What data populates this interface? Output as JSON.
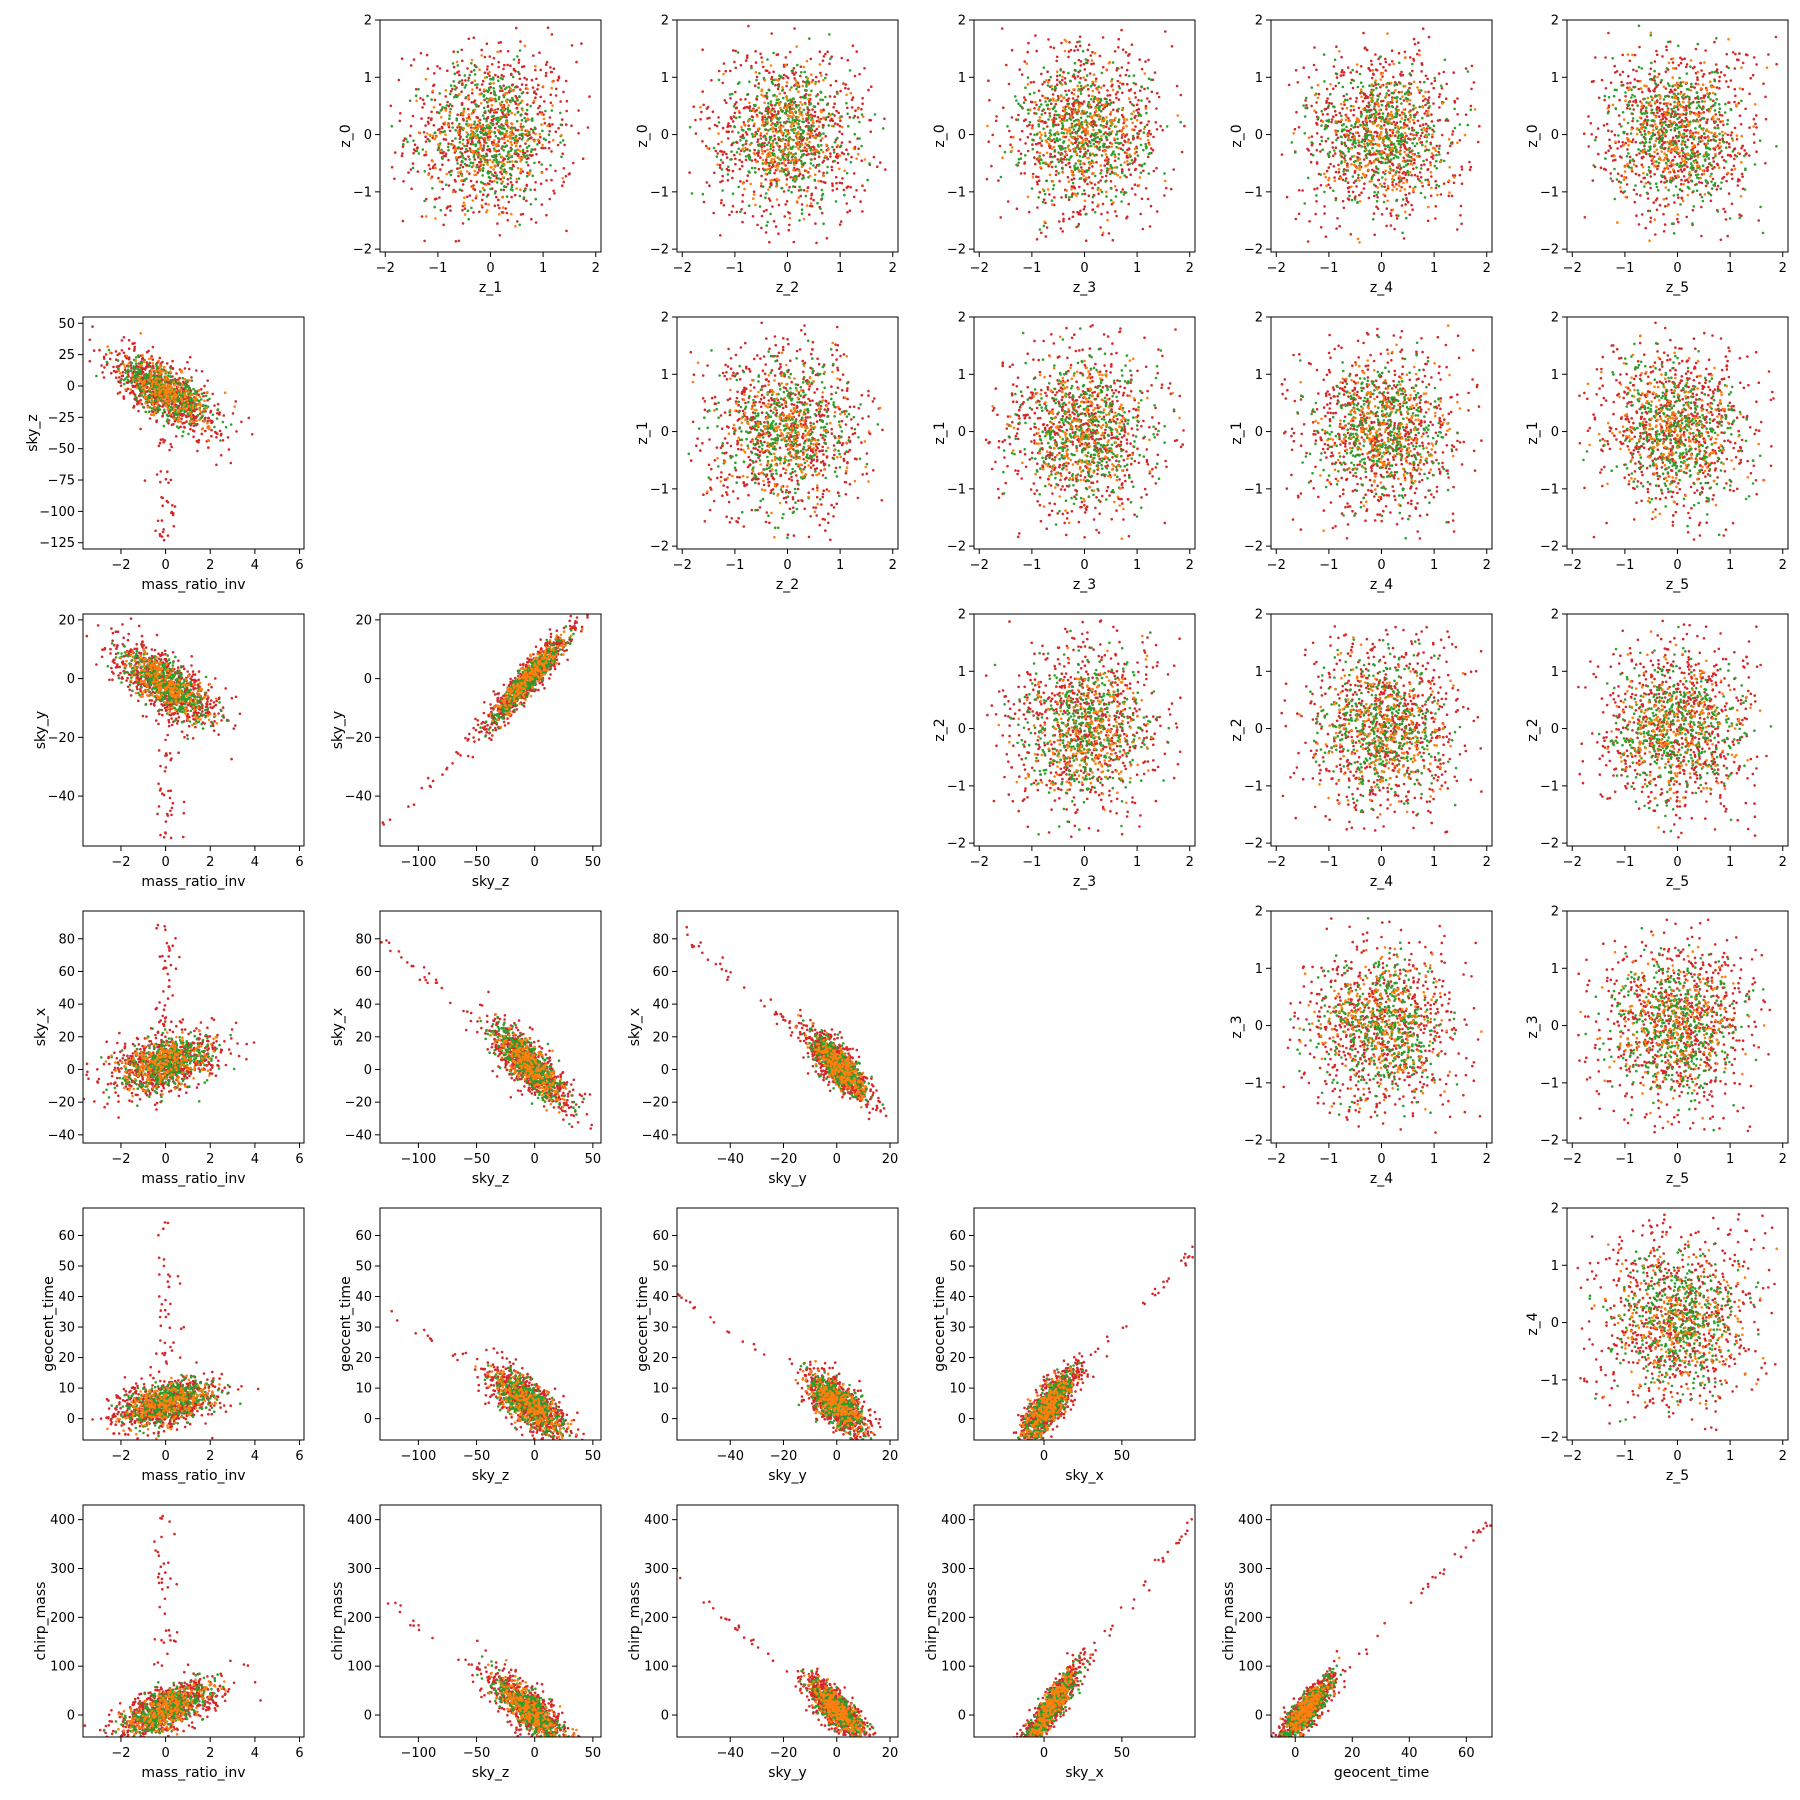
{
  "figure": {
    "background": "#ffffff",
    "series_colors": [
      "#d62728",
      "#2ca02c",
      "#ff7f0e"
    ],
    "n_variables": 7,
    "variable_names": [
      "mass_ratio_inv",
      "sky_z",
      "sky_y",
      "sky_x",
      "geocent_time",
      "chirp_mass",
      "z_0"
    ]
  },
  "chart_data": [
    {
      "type": "scatter",
      "row": 0,
      "col": 1,
      "xlabel": "z_1",
      "ylabel": "z_0",
      "xlim": [
        -2.1,
        2.1
      ],
      "ylim": [
        -2.05,
        2.0
      ],
      "xticks": [
        -2,
        -1,
        0,
        1,
        2
      ],
      "yticks": [
        -2,
        -1,
        0,
        1,
        2
      ],
      "gen": {
        "mode": "gauss",
        "sd": 0.8,
        "clip": 1.9
      }
    },
    {
      "type": "scatter",
      "row": 0,
      "col": 2,
      "xlabel": "z_2",
      "ylabel": "z_0",
      "xlim": [
        -2.1,
        2.1
      ],
      "ylim": [
        -2.05,
        2.0
      ],
      "xticks": [
        -2,
        -1,
        0,
        1,
        2
      ],
      "yticks": [
        -2,
        -1,
        0,
        1,
        2
      ],
      "gen": {
        "mode": "gauss",
        "sd": 0.8,
        "clip": 1.9
      }
    },
    {
      "type": "scatter",
      "row": 0,
      "col": 3,
      "xlabel": "z_3",
      "ylabel": "z_0",
      "xlim": [
        -2.1,
        2.1
      ],
      "ylim": [
        -2.05,
        2.0
      ],
      "xticks": [
        -2,
        -1,
        0,
        1,
        2
      ],
      "yticks": [
        -2,
        -1,
        0,
        1,
        2
      ],
      "gen": {
        "mode": "gauss",
        "sd": 0.8,
        "clip": 1.9
      }
    },
    {
      "type": "scatter",
      "row": 0,
      "col": 4,
      "xlabel": "z_4",
      "ylabel": "z_0",
      "xlim": [
        -2.1,
        2.1
      ],
      "ylim": [
        -2.05,
        2.0
      ],
      "xticks": [
        -2,
        -1,
        0,
        1,
        2
      ],
      "yticks": [
        -2,
        -1,
        0,
        1,
        2
      ],
      "gen": {
        "mode": "gauss",
        "sd": 0.8,
        "clip": 1.9
      }
    },
    {
      "type": "scatter",
      "row": 0,
      "col": 5,
      "xlabel": "z_5",
      "ylabel": "z_0",
      "xlim": [
        -2.1,
        2.1
      ],
      "ylim": [
        -2.05,
        2.0
      ],
      "xticks": [
        -2,
        -1,
        0,
        1,
        2
      ],
      "yticks": [
        -2,
        -1,
        0,
        1,
        2
      ],
      "gen": {
        "mode": "gauss",
        "sd": 0.8,
        "clip": 1.9
      }
    },
    {
      "type": "scatter",
      "row": 1,
      "col": 0,
      "xlabel": "mass_ratio_inv",
      "ylabel": "sky_z",
      "xlim": [
        -3.7,
        6.2
      ],
      "ylim": [
        -130,
        55
      ],
      "xticks": [
        -2,
        0,
        2,
        4,
        6
      ],
      "yticks": [
        -125,
        -100,
        -75,
        -50,
        -25,
        0,
        25,
        50
      ],
      "gen": {
        "mode": "linear",
        "cx": 0,
        "sx": 1.2,
        "cy": -5,
        "slope": -9,
        "sn": 12,
        "tail": {
          "x": 0,
          "sx": 0.3,
          "ylo": -125,
          "yhi": -40,
          "n": 40
        }
      }
    },
    {
      "type": "scatter",
      "row": 1,
      "col": 2,
      "xlabel": "z_2",
      "ylabel": "z_1",
      "xlim": [
        -2.1,
        2.1
      ],
      "ylim": [
        -2.05,
        2.0
      ],
      "xticks": [
        -2,
        -1,
        0,
        1,
        2
      ],
      "yticks": [
        -2,
        -1,
        0,
        1,
        2
      ],
      "gen": {
        "mode": "gauss",
        "sd": 0.8,
        "clip": 1.9
      }
    },
    {
      "type": "scatter",
      "row": 1,
      "col": 3,
      "xlabel": "z_3",
      "ylabel": "z_1",
      "xlim": [
        -2.1,
        2.1
      ],
      "ylim": [
        -2.05,
        2.0
      ],
      "xticks": [
        -2,
        -1,
        0,
        1,
        2
      ],
      "yticks": [
        -2,
        -1,
        0,
        1,
        2
      ],
      "gen": {
        "mode": "gauss",
        "sd": 0.8,
        "clip": 1.9
      }
    },
    {
      "type": "scatter",
      "row": 1,
      "col": 4,
      "xlabel": "z_4",
      "ylabel": "z_1",
      "xlim": [
        -2.1,
        2.1
      ],
      "ylim": [
        -2.05,
        2.0
      ],
      "xticks": [
        -2,
        -1,
        0,
        1,
        2
      ],
      "yticks": [
        -2,
        -1,
        0,
        1,
        2
      ],
      "gen": {
        "mode": "gauss",
        "sd": 0.8,
        "clip": 1.9
      }
    },
    {
      "type": "scatter",
      "row": 1,
      "col": 5,
      "xlabel": "z_5",
      "ylabel": "z_1",
      "xlim": [
        -2.1,
        2.1
      ],
      "ylim": [
        -2.05,
        2.0
      ],
      "xticks": [
        -2,
        -1,
        0,
        1,
        2
      ],
      "yticks": [
        -2,
        -1,
        0,
        1,
        2
      ],
      "gen": {
        "mode": "gauss",
        "sd": 0.8,
        "clip": 1.9
      }
    },
    {
      "type": "scatter",
      "row": 2,
      "col": 0,
      "xlabel": "mass_ratio_inv",
      "ylabel": "sky_y",
      "xlim": [
        -3.7,
        6.2
      ],
      "ylim": [
        -57,
        22
      ],
      "xticks": [
        -2,
        0,
        2,
        4,
        6
      ],
      "yticks": [
        -40,
        -20,
        0,
        20
      ],
      "gen": {
        "mode": "linear",
        "cx": 0,
        "sx": 1.2,
        "cy": -2,
        "slope": -4,
        "sn": 5,
        "tail": {
          "x": 0,
          "sx": 0.3,
          "ylo": -55,
          "yhi": -15,
          "n": 40
        }
      }
    },
    {
      "type": "scatter",
      "row": 2,
      "col": 1,
      "xlabel": "sky_z",
      "ylabel": "sky_y",
      "xlim": [
        -133,
        57
      ],
      "ylim": [
        -57,
        22
      ],
      "xticks": [
        -100,
        -50,
        0,
        50
      ],
      "yticks": [
        -40,
        -20,
        0,
        20
      ],
      "gen": {
        "mode": "linear",
        "cx": -5,
        "sx": 18,
        "cy": 0,
        "slope": 0.42,
        "sn": 3,
        "tail": {
          "x": -60,
          "sx": 25,
          "ylo": -50,
          "yhi": -15,
          "n": 30,
          "follow": 0.42
        }
      }
    },
    {
      "type": "scatter",
      "row": 2,
      "col": 3,
      "xlabel": "z_3",
      "ylabel": "z_2",
      "xlim": [
        -2.1,
        2.1
      ],
      "ylim": [
        -2.05,
        2.0
      ],
      "xticks": [
        -2,
        -1,
        0,
        1,
        2
      ],
      "yticks": [
        -2,
        -1,
        0,
        1,
        2
      ],
      "gen": {
        "mode": "gauss",
        "sd": 0.8,
        "clip": 1.9
      }
    },
    {
      "type": "scatter",
      "row": 2,
      "col": 4,
      "xlabel": "z_4",
      "ylabel": "z_2",
      "xlim": [
        -2.1,
        2.1
      ],
      "ylim": [
        -2.05,
        2.0
      ],
      "xticks": [
        -2,
        -1,
        0,
        1,
        2
      ],
      "yticks": [
        -2,
        -1,
        0,
        1,
        2
      ],
      "gen": {
        "mode": "gauss",
        "sd": 0.8,
        "clip": 1.9
      }
    },
    {
      "type": "scatter",
      "row": 2,
      "col": 5,
      "xlabel": "z_5",
      "ylabel": "z_2",
      "xlim": [
        -2.1,
        2.1
      ],
      "ylim": [
        -2.05,
        2.0
      ],
      "xticks": [
        -2,
        -1,
        0,
        1,
        2
      ],
      "yticks": [
        -2,
        -1,
        0,
        1,
        2
      ],
      "gen": {
        "mode": "gauss",
        "sd": 0.8,
        "clip": 1.9
      }
    },
    {
      "type": "scatter",
      "row": 3,
      "col": 0,
      "xlabel": "mass_ratio_inv",
      "ylabel": "sky_x",
      "xlim": [
        -3.7,
        6.2
      ],
      "ylim": [
        -45,
        97
      ],
      "xticks": [
        -2,
        0,
        2,
        4,
        6
      ],
      "yticks": [
        -40,
        -20,
        0,
        20,
        40,
        60,
        80
      ],
      "gen": {
        "mode": "linear",
        "cx": 0,
        "sx": 1.2,
        "cy": 4,
        "slope": 3,
        "sn": 9,
        "tail": {
          "x": 0,
          "sx": 0.3,
          "ylo": 25,
          "yhi": 90,
          "n": 40
        }
      }
    },
    {
      "type": "scatter",
      "row": 3,
      "col": 1,
      "xlabel": "sky_z",
      "ylabel": "sky_x",
      "xlim": [
        -133,
        57
      ],
      "ylim": [
        -45,
        97
      ],
      "xticks": [
        -100,
        -50,
        0,
        50
      ],
      "yticks": [
        -40,
        -20,
        0,
        20,
        40,
        60,
        80
      ],
      "gen": {
        "mode": "linear",
        "cx": -5,
        "sx": 18,
        "cy": 3,
        "slope": -0.6,
        "sn": 8,
        "tail": {
          "x": -70,
          "sx": 25,
          "ylo": 20,
          "yhi": 90,
          "n": 30,
          "follow": -0.6
        }
      }
    },
    {
      "type": "scatter",
      "row": 3,
      "col": 2,
      "xlabel": "sky_y",
      "ylabel": "sky_x",
      "xlim": [
        -60,
        23
      ],
      "ylim": [
        -45,
        97
      ],
      "xticks": [
        -40,
        -20,
        0,
        20
      ],
      "yticks": [
        -40,
        -20,
        0,
        20,
        40,
        60,
        80
      ],
      "gen": {
        "mode": "linear",
        "cx": 0,
        "sx": 6,
        "cy": 3,
        "slope": -1.4,
        "sn": 7,
        "tail": {
          "x": -35,
          "sx": 12,
          "ylo": 20,
          "yhi": 90,
          "n": 30,
          "follow": -1.4
        }
      }
    },
    {
      "type": "scatter",
      "row": 3,
      "col": 4,
      "xlabel": "z_4",
      "ylabel": "z_3",
      "xlim": [
        -2.1,
        2.1
      ],
      "ylim": [
        -2.05,
        2.0
      ],
      "xticks": [
        -2,
        -1,
        0,
        1,
        2
      ],
      "yticks": [
        -2,
        -1,
        0,
        1,
        2
      ],
      "gen": {
        "mode": "gauss",
        "sd": 0.8,
        "clip": 1.9
      }
    },
    {
      "type": "scatter",
      "row": 3,
      "col": 5,
      "xlabel": "z_5",
      "ylabel": "z_3",
      "xlim": [
        -2.1,
        2.1
      ],
      "ylim": [
        -2.05,
        2.0
      ],
      "xticks": [
        -2,
        -1,
        0,
        1,
        2
      ],
      "yticks": [
        -2,
        -1,
        0,
        1,
        2
      ],
      "gen": {
        "mode": "gauss",
        "sd": 0.8,
        "clip": 1.9
      }
    },
    {
      "type": "scatter",
      "row": 4,
      "col": 0,
      "xlabel": "mass_ratio_inv",
      "ylabel": "geocent_time",
      "xlim": [
        -3.7,
        6.2
      ],
      "ylim": [
        -7,
        69
      ],
      "xticks": [
        -2,
        0,
        2,
        4,
        6
      ],
      "yticks": [
        0,
        10,
        20,
        30,
        40,
        50,
        60
      ],
      "gen": {
        "mode": "linear",
        "cx": 0,
        "sx": 1.2,
        "cy": 5,
        "slope": 1.5,
        "sn": 4,
        "tail": {
          "x": 0,
          "sx": 0.3,
          "ylo": 15,
          "yhi": 65,
          "n": 40
        }
      }
    },
    {
      "type": "scatter",
      "row": 4,
      "col": 1,
      "xlabel": "sky_z",
      "ylabel": "geocent_time",
      "xlim": [
        -133,
        57
      ],
      "ylim": [
        -7,
        69
      ],
      "xticks": [
        -100,
        -50,
        0,
        50
      ],
      "yticks": [
        0,
        10,
        20,
        30,
        40,
        50,
        60
      ],
      "gen": {
        "mode": "linear",
        "cx": -5,
        "sx": 18,
        "cy": 5,
        "slope": -0.25,
        "sn": 4,
        "tail": {
          "x": -70,
          "sx": 25,
          "ylo": 15,
          "yhi": 65,
          "n": 30,
          "follow": -0.25
        }
      }
    },
    {
      "type": "scatter",
      "row": 4,
      "col": 2,
      "xlabel": "sky_y",
      "ylabel": "geocent_time",
      "xlim": [
        -60,
        23
      ],
      "ylim": [
        -7,
        69
      ],
      "xticks": [
        -40,
        -20,
        0,
        20
      ],
      "yticks": [
        0,
        10,
        20,
        30,
        40,
        50,
        60
      ],
      "gen": {
        "mode": "linear",
        "cx": 0,
        "sx": 6,
        "cy": 5,
        "slope": -0.6,
        "sn": 4,
        "tail": {
          "x": -35,
          "sx": 12,
          "ylo": 15,
          "yhi": 65,
          "n": 30,
          "follow": -0.6
        }
      }
    },
    {
      "type": "scatter",
      "row": 4,
      "col": 3,
      "xlabel": "sky_x",
      "ylabel": "geocent_time",
      "xlim": [
        -45,
        97
      ],
      "ylim": [
        -7,
        69
      ],
      "xticks": [
        0,
        50
      ],
      "yticks": [
        0,
        10,
        20,
        30,
        40,
        50,
        60
      ],
      "gen": {
        "mode": "linear",
        "cx": 3,
        "sx": 10,
        "cy": 4,
        "slope": 0.55,
        "sn": 4,
        "tail": {
          "x": 55,
          "sx": 20,
          "ylo": 20,
          "yhi": 65,
          "n": 30,
          "follow": 0.55
        }
      }
    },
    {
      "type": "scatter",
      "row": 4,
      "col": 5,
      "xlabel": "z_5",
      "ylabel": "z_4",
      "xlim": [
        -2.1,
        2.1
      ],
      "ylim": [
        -2.05,
        2.0
      ],
      "xticks": [
        -2,
        -1,
        0,
        1,
        2
      ],
      "yticks": [
        -2,
        -1,
        0,
        1,
        2
      ],
      "gen": {
        "mode": "gauss",
        "sd": 0.8,
        "clip": 1.9
      }
    },
    {
      "type": "scatter",
      "row": 5,
      "col": 0,
      "xlabel": "mass_ratio_inv",
      "ylabel": "chirp_mass",
      "xlim": [
        -3.7,
        6.2
      ],
      "ylim": [
        -45,
        430
      ],
      "xticks": [
        -2,
        0,
        2,
        4,
        6
      ],
      "yticks": [
        0,
        100,
        200,
        300,
        400
      ],
      "gen": {
        "mode": "linear",
        "cx": 0,
        "sx": 1.2,
        "cy": 10,
        "slope": 18,
        "sn": 25,
        "tail": {
          "x": 0,
          "sx": 0.3,
          "ylo": 100,
          "yhi": 410,
          "n": 40
        }
      }
    },
    {
      "type": "scatter",
      "row": 5,
      "col": 1,
      "xlabel": "sky_z",
      "ylabel": "chirp_mass",
      "xlim": [
        -133,
        57
      ],
      "ylim": [
        -45,
        430
      ],
      "xticks": [
        -100,
        -50,
        0,
        50
      ],
      "yticks": [
        0,
        100,
        200,
        300,
        400
      ],
      "gen": {
        "mode": "linear",
        "cx": -5,
        "sx": 18,
        "cy": 10,
        "slope": -1.8,
        "sn": 25,
        "tail": {
          "x": -70,
          "sx": 25,
          "ylo": 100,
          "yhi": 410,
          "n": 30,
          "follow": -1.8
        }
      }
    },
    {
      "type": "scatter",
      "row": 5,
      "col": 2,
      "xlabel": "sky_y",
      "ylabel": "chirp_mass",
      "xlim": [
        -60,
        23
      ],
      "ylim": [
        -45,
        430
      ],
      "xticks": [
        -40,
        -20,
        0,
        20
      ],
      "yticks": [
        0,
        100,
        200,
        300,
        400
      ],
      "gen": {
        "mode": "linear",
        "cx": 0,
        "sx": 6,
        "cy": 10,
        "slope": -4.5,
        "sn": 20,
        "tail": {
          "x": -35,
          "sx": 12,
          "ylo": 100,
          "yhi": 410,
          "n": 30,
          "follow": -4.5
        }
      }
    },
    {
      "type": "scatter",
      "row": 5,
      "col": 3,
      "xlabel": "sky_x",
      "ylabel": "chirp_mass",
      "xlim": [
        -45,
        97
      ],
      "ylim": [
        -45,
        430
      ],
      "xticks": [
        0,
        50
      ],
      "yticks": [
        0,
        100,
        200,
        300,
        400
      ],
      "gen": {
        "mode": "linear",
        "cx": 3,
        "sx": 10,
        "cy": 10,
        "slope": 4.2,
        "sn": 20,
        "tail": {
          "x": 55,
          "sx": 20,
          "ylo": 100,
          "yhi": 410,
          "n": 30,
          "follow": 4.2
        }
      }
    },
    {
      "type": "scatter",
      "row": 5,
      "col": 4,
      "xlabel": "geocent_time",
      "ylabel": "chirp_mass",
      "xlim": [
        -8.5,
        69
      ],
      "ylim": [
        -45,
        430
      ],
      "xticks": [
        0,
        20,
        40,
        60
      ],
      "yticks": [
        0,
        100,
        200,
        300,
        400
      ],
      "gen": {
        "mode": "linear",
        "cx": 4,
        "sx": 5,
        "cy": 10,
        "slope": 6,
        "sn": 20,
        "tail": {
          "x": 40,
          "sx": 14,
          "ylo": 120,
          "yhi": 410,
          "n": 30,
          "follow": 6
        }
      }
    }
  ]
}
